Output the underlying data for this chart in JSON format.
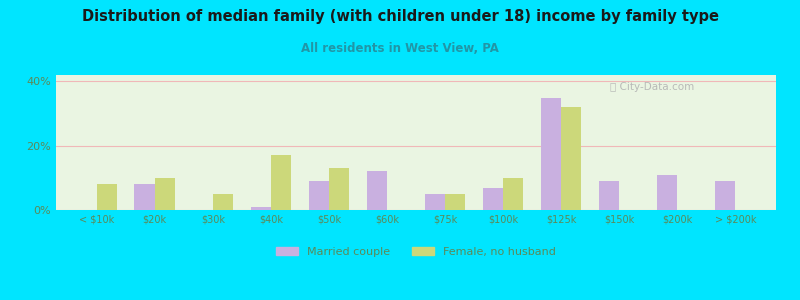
{
  "title": "Distribution of median family (with children under 18) income by family type",
  "subtitle": "All residents in West View, PA",
  "categories": [
    "< $10k",
    "$20k",
    "$30k",
    "$40k",
    "$50k",
    "$60k",
    "$75k",
    "$100k",
    "$125k",
    "$150k",
    "$200k",
    "> $200k"
  ],
  "married_couple": [
    0,
    8,
    0,
    1,
    9,
    12,
    5,
    7,
    35,
    9,
    11,
    9
  ],
  "female_no_husband": [
    8,
    10,
    5,
    17,
    13,
    0,
    5,
    10,
    32,
    0,
    0,
    0
  ],
  "married_color": "#c9b0e0",
  "female_color": "#ccd87a",
  "bg_color": "#00e5ff",
  "plot_bg": "#eaf5e2",
  "title_color": "#1a1a1a",
  "subtitle_color": "#2196a6",
  "axis_label_color": "#5a8a5a",
  "grid_color": "#f0b8b8",
  "ylim": [
    0,
    42
  ],
  "yticks": [
    0,
    20,
    40
  ],
  "bar_width": 0.35
}
